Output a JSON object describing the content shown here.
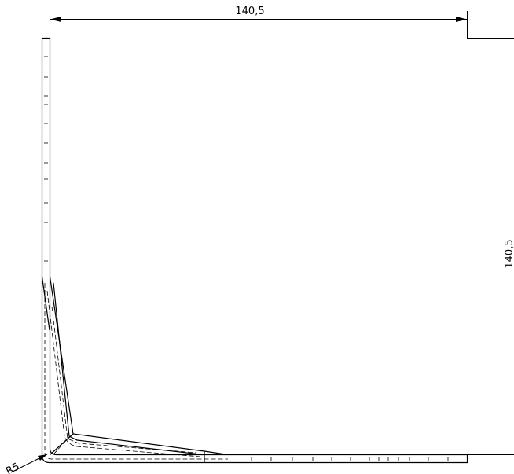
{
  "drawing": {
    "dimension_width": "140,5",
    "dimension_height": "140,5",
    "radius_label": "R5"
  },
  "colors": {
    "line": "#000000",
    "background": "#ffffff"
  }
}
